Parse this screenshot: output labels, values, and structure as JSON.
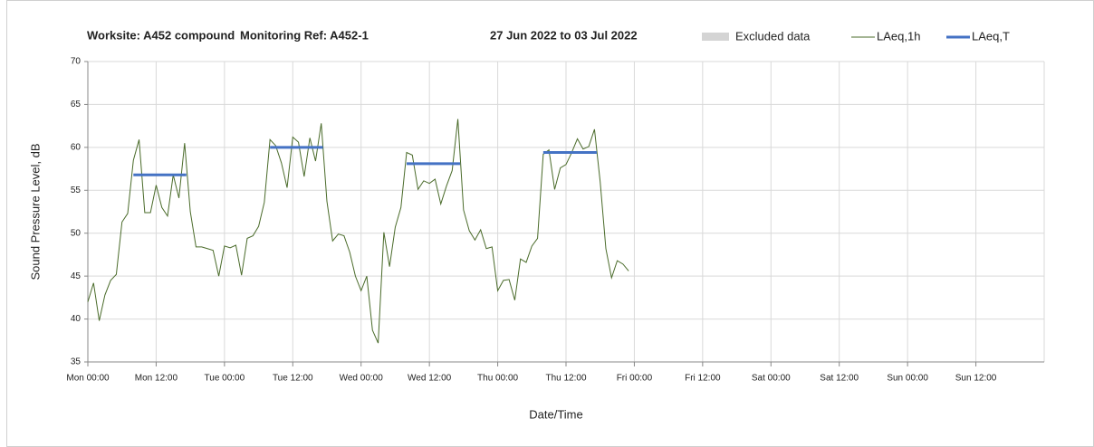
{
  "chart_data": {
    "type": "line",
    "title_parts": [
      "Worksite: A452 compound",
      "Monitoring Ref: A452-1",
      "27 Jun 2022 to 03 Jul 2022"
    ],
    "ylabel": "Sound Pressure Level, dB",
    "xlabel": "Date/Time",
    "xlim": [
      0,
      168
    ],
    "ylim": [
      35,
      70
    ],
    "yticks": [
      35,
      40,
      45,
      50,
      55,
      60,
      65,
      70
    ],
    "xticks": [
      {
        "value": 0,
        "label": "Mon 00:00"
      },
      {
        "value": 12,
        "label": "Mon 12:00"
      },
      {
        "value": 24,
        "label": "Tue 00:00"
      },
      {
        "value": 36,
        "label": "Tue 12:00"
      },
      {
        "value": 48,
        "label": "Wed 00:00"
      },
      {
        "value": 60,
        "label": "Wed 12:00"
      },
      {
        "value": 72,
        "label": "Thu 00:00"
      },
      {
        "value": 84,
        "label": "Thu 12:00"
      },
      {
        "value": 96,
        "label": "Fri 00:00"
      },
      {
        "value": 108,
        "label": "Fri 12:00"
      },
      {
        "value": 120,
        "label": "Sat 00:00"
      },
      {
        "value": 132,
        "label": "Sat 12:00"
      },
      {
        "value": 144,
        "label": "Sun 00:00"
      },
      {
        "value": 156,
        "label": "Sun 12:00"
      }
    ],
    "grid": true,
    "excluded": {
      "name": "Excluded data",
      "color": "#d4d4d4"
    },
    "x": [
      0,
      1,
      2,
      3,
      4,
      5,
      6,
      7,
      8,
      9,
      10,
      11,
      12,
      13,
      14,
      15,
      16,
      17,
      18,
      19,
      20,
      21,
      22,
      23,
      24,
      25,
      26,
      27,
      28,
      29,
      30,
      31,
      32,
      33,
      34,
      35,
      36,
      37,
      38,
      39,
      40,
      41,
      42,
      43,
      44,
      45,
      46,
      47,
      48,
      49,
      50,
      51,
      52,
      53,
      54,
      55,
      56,
      57,
      58,
      59,
      60,
      61,
      62,
      63,
      64,
      65,
      66,
      67,
      68,
      69,
      70,
      71,
      72,
      73,
      74,
      75,
      76,
      77,
      78,
      79,
      80,
      81,
      82,
      83,
      84,
      85,
      86,
      87,
      88,
      89,
      90,
      91,
      92,
      93,
      94,
      95
    ],
    "series": [
      {
        "name": "LAeq,1h",
        "color": "#4a6b2a",
        "values": [
          42,
          44.2,
          39.8,
          42.8,
          44.5,
          45.2,
          51.3,
          52.3,
          58.5,
          60.9,
          52.4,
          52.4,
          55.6,
          53,
          52,
          56.8,
          54.1,
          60.5,
          52.5,
          48.4,
          48.4,
          48.2,
          48,
          45,
          48.5,
          48.3,
          48.6,
          45.1,
          49.4,
          49.7,
          50.8,
          53.6,
          60.9,
          60.2,
          58.2,
          55.3,
          61.2,
          60.6,
          56.6,
          61.1,
          58.4,
          62.8,
          53.7,
          49.1,
          49.9,
          49.7,
          47.8,
          45,
          43.3,
          45,
          38.7,
          37.2,
          50.1,
          46.1,
          50.7,
          53,
          59.4,
          59.1,
          55.1,
          56.1,
          55.8,
          56.3,
          53.4,
          55.5,
          57.3,
          63.3,
          52.7,
          50.3,
          49.2,
          50.4,
          48.2,
          48.4,
          43.3,
          44.5,
          44.6,
          42.2,
          47,
          46.6,
          48.5,
          49.4,
          59.2,
          59.7,
          55.1,
          57.6,
          58,
          59.4,
          61,
          59.8,
          60.1,
          62.1,
          56,
          48.2,
          44.8,
          46.8,
          46.4,
          45.6
        ]
      },
      {
        "name": "LAeq,T",
        "color": "#4472c4",
        "segments": [
          {
            "x": [
              8,
              17.3
            ],
            "value": 56.8
          },
          {
            "x": [
              32,
              41.3
            ],
            "value": 60
          },
          {
            "x": [
              56,
              65.4
            ],
            "value": 58.1
          },
          {
            "x": [
              80,
              89.4
            ],
            "value": 59.4
          }
        ]
      }
    ]
  }
}
